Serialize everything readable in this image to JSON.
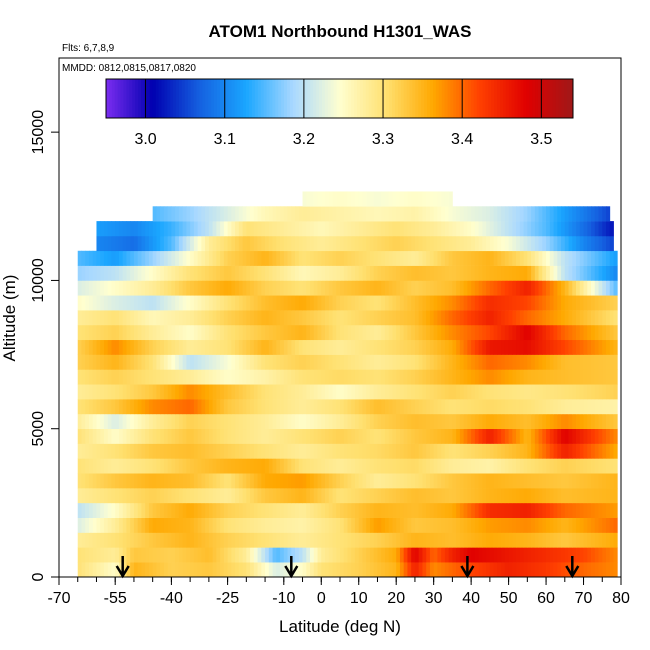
{
  "chart_data": {
    "type": "heatmap",
    "title": "ATOM1 Northbound H1301_WAS",
    "annotations": {
      "flights": "Flts: 6,7,8,9",
      "dates": "MMDD: 0812,0815,0817,0820"
    },
    "xlabel": "Latitude (deg N)",
    "ylabel": "Altitude (m)",
    "xlim": [
      -70,
      80
    ],
    "ylim": [
      0,
      17500
    ],
    "x_ticks": [
      -70,
      -55,
      -40,
      -25,
      -10,
      0,
      10,
      20,
      30,
      40,
      50,
      60,
      70,
      80
    ],
    "y_ticks": [
      0,
      5000,
      10000,
      15000
    ],
    "colorbar": {
      "placement": "top",
      "range": [
        2.95,
        3.54
      ],
      "ticks": [
        3.0,
        3.1,
        3.2,
        3.3,
        3.4,
        3.5
      ],
      "tick_labels": [
        "3.0",
        "3.1",
        "3.2",
        "3.3",
        "3.4",
        "3.5"
      ],
      "colors": [
        "#7b2df0",
        "#0000b0",
        "#1560e0",
        "#1aa6ff",
        "#a8d8ff",
        "#ffffd0",
        "#ffe070",
        "#ffa800",
        "#ff4000",
        "#e00000",
        "#a01818"
      ]
    },
    "profile_markers_latitude": [
      -53,
      -8,
      39,
      67
    ],
    "grid": false,
    "layers": [
      {
        "alt": [
          0,
          500
        ],
        "x": [
          -65,
          -55,
          -50,
          -40,
          -30,
          -20,
          -12,
          -5,
          0,
          10,
          20,
          25,
          30,
          35,
          40,
          50,
          60,
          70,
          79
        ],
        "values": [
          3.3,
          3.25,
          3.35,
          3.32,
          3.33,
          3.3,
          3.22,
          3.25,
          3.3,
          3.32,
          3.35,
          3.45,
          3.38,
          3.4,
          3.42,
          3.45,
          3.43,
          3.4,
          3.38
        ]
      },
      {
        "alt": [
          500,
          1000
        ],
        "x": [
          -65,
          -55,
          -50,
          -40,
          -30,
          -20,
          -12,
          -5,
          0,
          10,
          20,
          25,
          30,
          35,
          40,
          50,
          60,
          70,
          79
        ],
        "values": [
          3.3,
          3.28,
          3.33,
          3.32,
          3.34,
          3.28,
          3.15,
          3.2,
          3.28,
          3.32,
          3.36,
          3.48,
          3.4,
          3.45,
          3.48,
          3.46,
          3.44,
          3.42,
          3.38
        ]
      },
      {
        "alt": [
          1000,
          1500
        ],
        "x": [
          -65,
          -55,
          -45,
          -35,
          -25,
          -15,
          -5,
          5,
          15,
          25,
          35,
          45,
          55,
          65,
          79
        ],
        "values": [
          3.28,
          3.3,
          3.33,
          3.35,
          3.32,
          3.3,
          3.28,
          3.3,
          3.32,
          3.35,
          3.34,
          3.36,
          3.35,
          3.33,
          3.36
        ]
      },
      {
        "alt": [
          1500,
          2000
        ],
        "x": [
          -65,
          -55,
          -45,
          -35,
          -25,
          -15,
          -5,
          5,
          15,
          25,
          35,
          45,
          55,
          65,
          79
        ],
        "values": [
          3.22,
          3.28,
          3.36,
          3.35,
          3.3,
          3.28,
          3.27,
          3.3,
          3.37,
          3.33,
          3.34,
          3.37,
          3.38,
          3.35,
          3.4
        ]
      },
      {
        "alt": [
          2000,
          2500
        ],
        "x": [
          -65,
          -55,
          -45,
          -35,
          -25,
          -15,
          -5,
          5,
          15,
          25,
          35,
          45,
          55,
          65,
          79
        ],
        "values": [
          3.2,
          3.25,
          3.33,
          3.36,
          3.32,
          3.3,
          3.28,
          3.32,
          3.35,
          3.34,
          3.36,
          3.44,
          3.45,
          3.4,
          3.37
        ]
      },
      {
        "alt": [
          2500,
          3000
        ],
        "x": [
          -65,
          -55,
          -45,
          -35,
          -25,
          -15,
          -5,
          5,
          15,
          25,
          35,
          45,
          55,
          65,
          79
        ],
        "values": [
          3.28,
          3.3,
          3.32,
          3.3,
          3.28,
          3.33,
          3.35,
          3.3,
          3.32,
          3.34,
          3.33,
          3.35,
          3.36,
          3.34,
          3.35
        ]
      },
      {
        "alt": [
          3000,
          3500
        ],
        "x": [
          -65,
          -55,
          -45,
          -35,
          -25,
          -15,
          -5,
          5,
          15,
          25,
          35,
          45,
          55,
          65,
          79
        ],
        "values": [
          3.3,
          3.33,
          3.35,
          3.34,
          3.3,
          3.36,
          3.37,
          3.32,
          3.28,
          3.3,
          3.33,
          3.35,
          3.34,
          3.33,
          3.35
        ]
      },
      {
        "alt": [
          3500,
          4000
        ],
        "x": [
          -65,
          -55,
          -45,
          -35,
          -25,
          -15,
          -5,
          5,
          15,
          25,
          35,
          45,
          55,
          65,
          79
        ],
        "values": [
          3.3,
          3.28,
          3.3,
          3.33,
          3.35,
          3.36,
          3.3,
          3.28,
          3.3,
          3.31,
          3.28,
          3.27,
          3.3,
          3.32,
          3.3
        ]
      },
      {
        "alt": [
          4000,
          4500
        ],
        "x": [
          -65,
          -55,
          -45,
          -35,
          -25,
          -15,
          -5,
          5,
          15,
          25,
          35,
          45,
          55,
          65,
          79
        ],
        "values": [
          3.28,
          3.3,
          3.33,
          3.34,
          3.32,
          3.3,
          3.28,
          3.3,
          3.31,
          3.33,
          3.3,
          3.32,
          3.35,
          3.45,
          3.36
        ]
      },
      {
        "alt": [
          4500,
          5000
        ],
        "x": [
          -65,
          -55,
          -45,
          -35,
          -25,
          -15,
          -5,
          5,
          15,
          25,
          35,
          45,
          55,
          65,
          79
        ],
        "values": [
          3.3,
          3.25,
          3.3,
          3.33,
          3.3,
          3.28,
          3.3,
          3.32,
          3.3,
          3.33,
          3.35,
          3.45,
          3.35,
          3.48,
          3.38
        ]
      },
      {
        "alt": [
          5000,
          5500
        ],
        "x": [
          -65,
          -55,
          -45,
          -35,
          -25,
          -15,
          -5,
          5,
          15,
          25,
          35,
          45,
          55,
          65,
          79
        ],
        "values": [
          3.28,
          3.22,
          3.28,
          3.32,
          3.3,
          3.28,
          3.25,
          3.28,
          3.32,
          3.34,
          3.33,
          3.36,
          3.34,
          3.38,
          3.33
        ]
      },
      {
        "alt": [
          5500,
          6000
        ],
        "x": [
          -65,
          -55,
          -45,
          -35,
          -25,
          -15,
          -5,
          5,
          15,
          25,
          35,
          45,
          55,
          65,
          79
        ],
        "values": [
          3.3,
          3.33,
          3.38,
          3.4,
          3.33,
          3.3,
          3.28,
          3.3,
          3.34,
          3.32,
          3.3,
          3.31,
          3.3,
          3.28,
          3.27
        ]
      },
      {
        "alt": [
          6000,
          6500
        ],
        "x": [
          -65,
          -55,
          -45,
          -35,
          -25,
          -15,
          -5,
          5,
          15,
          25,
          35,
          45,
          55,
          65,
          79
        ],
        "values": [
          3.28,
          3.3,
          3.33,
          3.38,
          3.34,
          3.3,
          3.28,
          3.25,
          3.28,
          3.3,
          3.32,
          3.3,
          3.29,
          3.3,
          3.32
        ]
      },
      {
        "alt": [
          6500,
          7000
        ],
        "x": [
          -65,
          -55,
          -45,
          -35,
          -25,
          -15,
          -5,
          5,
          15,
          25,
          35,
          45,
          55,
          65,
          79
        ],
        "values": [
          3.3,
          3.32,
          3.3,
          3.28,
          3.25,
          3.27,
          3.3,
          3.31,
          3.3,
          3.32,
          3.35,
          3.38,
          3.35,
          3.34,
          3.33
        ]
      },
      {
        "alt": [
          7000,
          7500
        ],
        "x": [
          -65,
          -55,
          -45,
          -35,
          -25,
          -15,
          -5,
          5,
          15,
          25,
          35,
          45,
          55,
          65,
          79
        ],
        "values": [
          3.32,
          3.35,
          3.3,
          3.2,
          3.24,
          3.3,
          3.32,
          3.3,
          3.28,
          3.3,
          3.35,
          3.4,
          3.38,
          3.34,
          3.33
        ]
      },
      {
        "alt": [
          7500,
          8000
        ],
        "x": [
          -65,
          -55,
          -45,
          -35,
          -25,
          -15,
          -5,
          5,
          15,
          25,
          35,
          45,
          55,
          65,
          79
        ],
        "values": [
          3.32,
          3.38,
          3.32,
          3.28,
          3.3,
          3.35,
          3.3,
          3.28,
          3.3,
          3.32,
          3.36,
          3.46,
          3.47,
          3.42,
          3.35
        ]
      },
      {
        "alt": [
          8000,
          8500
        ],
        "x": [
          -65,
          -55,
          -45,
          -35,
          -25,
          -15,
          -5,
          5,
          15,
          25,
          35,
          45,
          55,
          65,
          79
        ],
        "values": [
          3.3,
          3.32,
          3.28,
          3.25,
          3.3,
          3.33,
          3.35,
          3.3,
          3.28,
          3.33,
          3.38,
          3.42,
          3.48,
          3.4,
          3.33
        ]
      },
      {
        "alt": [
          8500,
          9000
        ],
        "x": [
          -65,
          -55,
          -45,
          -35,
          -25,
          -15,
          -5,
          5,
          15,
          25,
          35,
          45,
          55,
          65,
          79
        ],
        "values": [
          3.28,
          3.3,
          3.26,
          3.28,
          3.32,
          3.35,
          3.33,
          3.3,
          3.32,
          3.34,
          3.4,
          3.45,
          3.4,
          3.36,
          3.3
        ]
      },
      {
        "alt": [
          9000,
          9500
        ],
        "x": [
          -65,
          -55,
          -45,
          -35,
          -25,
          -15,
          -5,
          5,
          15,
          25,
          35,
          45,
          55,
          65,
          79
        ],
        "values": [
          3.25,
          3.22,
          3.2,
          3.25,
          3.3,
          3.34,
          3.36,
          3.32,
          3.3,
          3.34,
          3.38,
          3.44,
          3.42,
          3.36,
          3.32
        ]
      },
      {
        "alt": [
          9500,
          10000
        ],
        "x": [
          -65,
          -55,
          -45,
          -35,
          -25,
          -15,
          -5,
          5,
          15,
          25,
          35,
          45,
          55,
          65,
          79
        ],
        "values": [
          3.22,
          3.25,
          3.28,
          3.33,
          3.36,
          3.32,
          3.3,
          3.33,
          3.35,
          3.32,
          3.34,
          3.4,
          3.45,
          3.35,
          3.15
        ]
      },
      {
        "alt": [
          10000,
          10500
        ],
        "x": [
          -65,
          -55,
          -45,
          -35,
          -25,
          -15,
          -5,
          5,
          15,
          25,
          35,
          45,
          55,
          65,
          79
        ],
        "values": [
          3.18,
          3.2,
          3.25,
          3.3,
          3.33,
          3.3,
          3.26,
          3.28,
          3.32,
          3.34,
          3.33,
          3.35,
          3.36,
          3.2,
          3.1
        ]
      },
      {
        "alt": [
          10500,
          11000
        ],
        "x": [
          -65,
          -55,
          -45,
          -35,
          -25,
          -15,
          -5,
          5,
          15,
          25,
          35,
          45,
          55,
          65,
          79
        ],
        "values": [
          3.15,
          3.12,
          3.18,
          3.25,
          3.32,
          3.35,
          3.3,
          3.32,
          3.3,
          3.28,
          3.33,
          3.35,
          3.3,
          3.2,
          3.12
        ]
      },
      {
        "alt": [
          11000,
          11500
        ],
        "x": [
          -60,
          -50,
          -40,
          -30,
          -20,
          -10,
          0,
          10,
          20,
          30,
          40,
          50,
          60,
          70,
          78
        ],
        "values": [
          3.1,
          3.08,
          3.15,
          3.28,
          3.33,
          3.3,
          3.28,
          3.3,
          3.32,
          3.3,
          3.28,
          3.24,
          3.18,
          3.1,
          3.05
        ]
      },
      {
        "alt": [
          11500,
          12000
        ],
        "x": [
          -60,
          -50,
          -40,
          -30,
          -20,
          -10,
          0,
          10,
          20,
          30,
          40,
          50,
          60,
          70,
          78
        ],
        "values": [
          3.12,
          3.1,
          3.14,
          3.2,
          3.3,
          3.28,
          3.26,
          3.28,
          3.3,
          3.28,
          3.25,
          3.2,
          3.15,
          3.08,
          3.02
        ]
      },
      {
        "alt": [
          12000,
          12500
        ],
        "x": [
          -45,
          -35,
          -25,
          -15,
          -5,
          5,
          15,
          25,
          35,
          45,
          55,
          65,
          77
        ],
        "values": [
          3.15,
          3.18,
          3.22,
          3.26,
          3.28,
          3.27,
          3.26,
          3.27,
          3.24,
          3.22,
          3.18,
          3.12,
          3.05
        ]
      },
      {
        "alt": [
          12500,
          13000
        ],
        "x": [
          -5,
          5,
          15,
          25,
          35
        ],
        "values": [
          3.24,
          3.25,
          3.24,
          3.25,
          3.24
        ]
      }
    ]
  }
}
